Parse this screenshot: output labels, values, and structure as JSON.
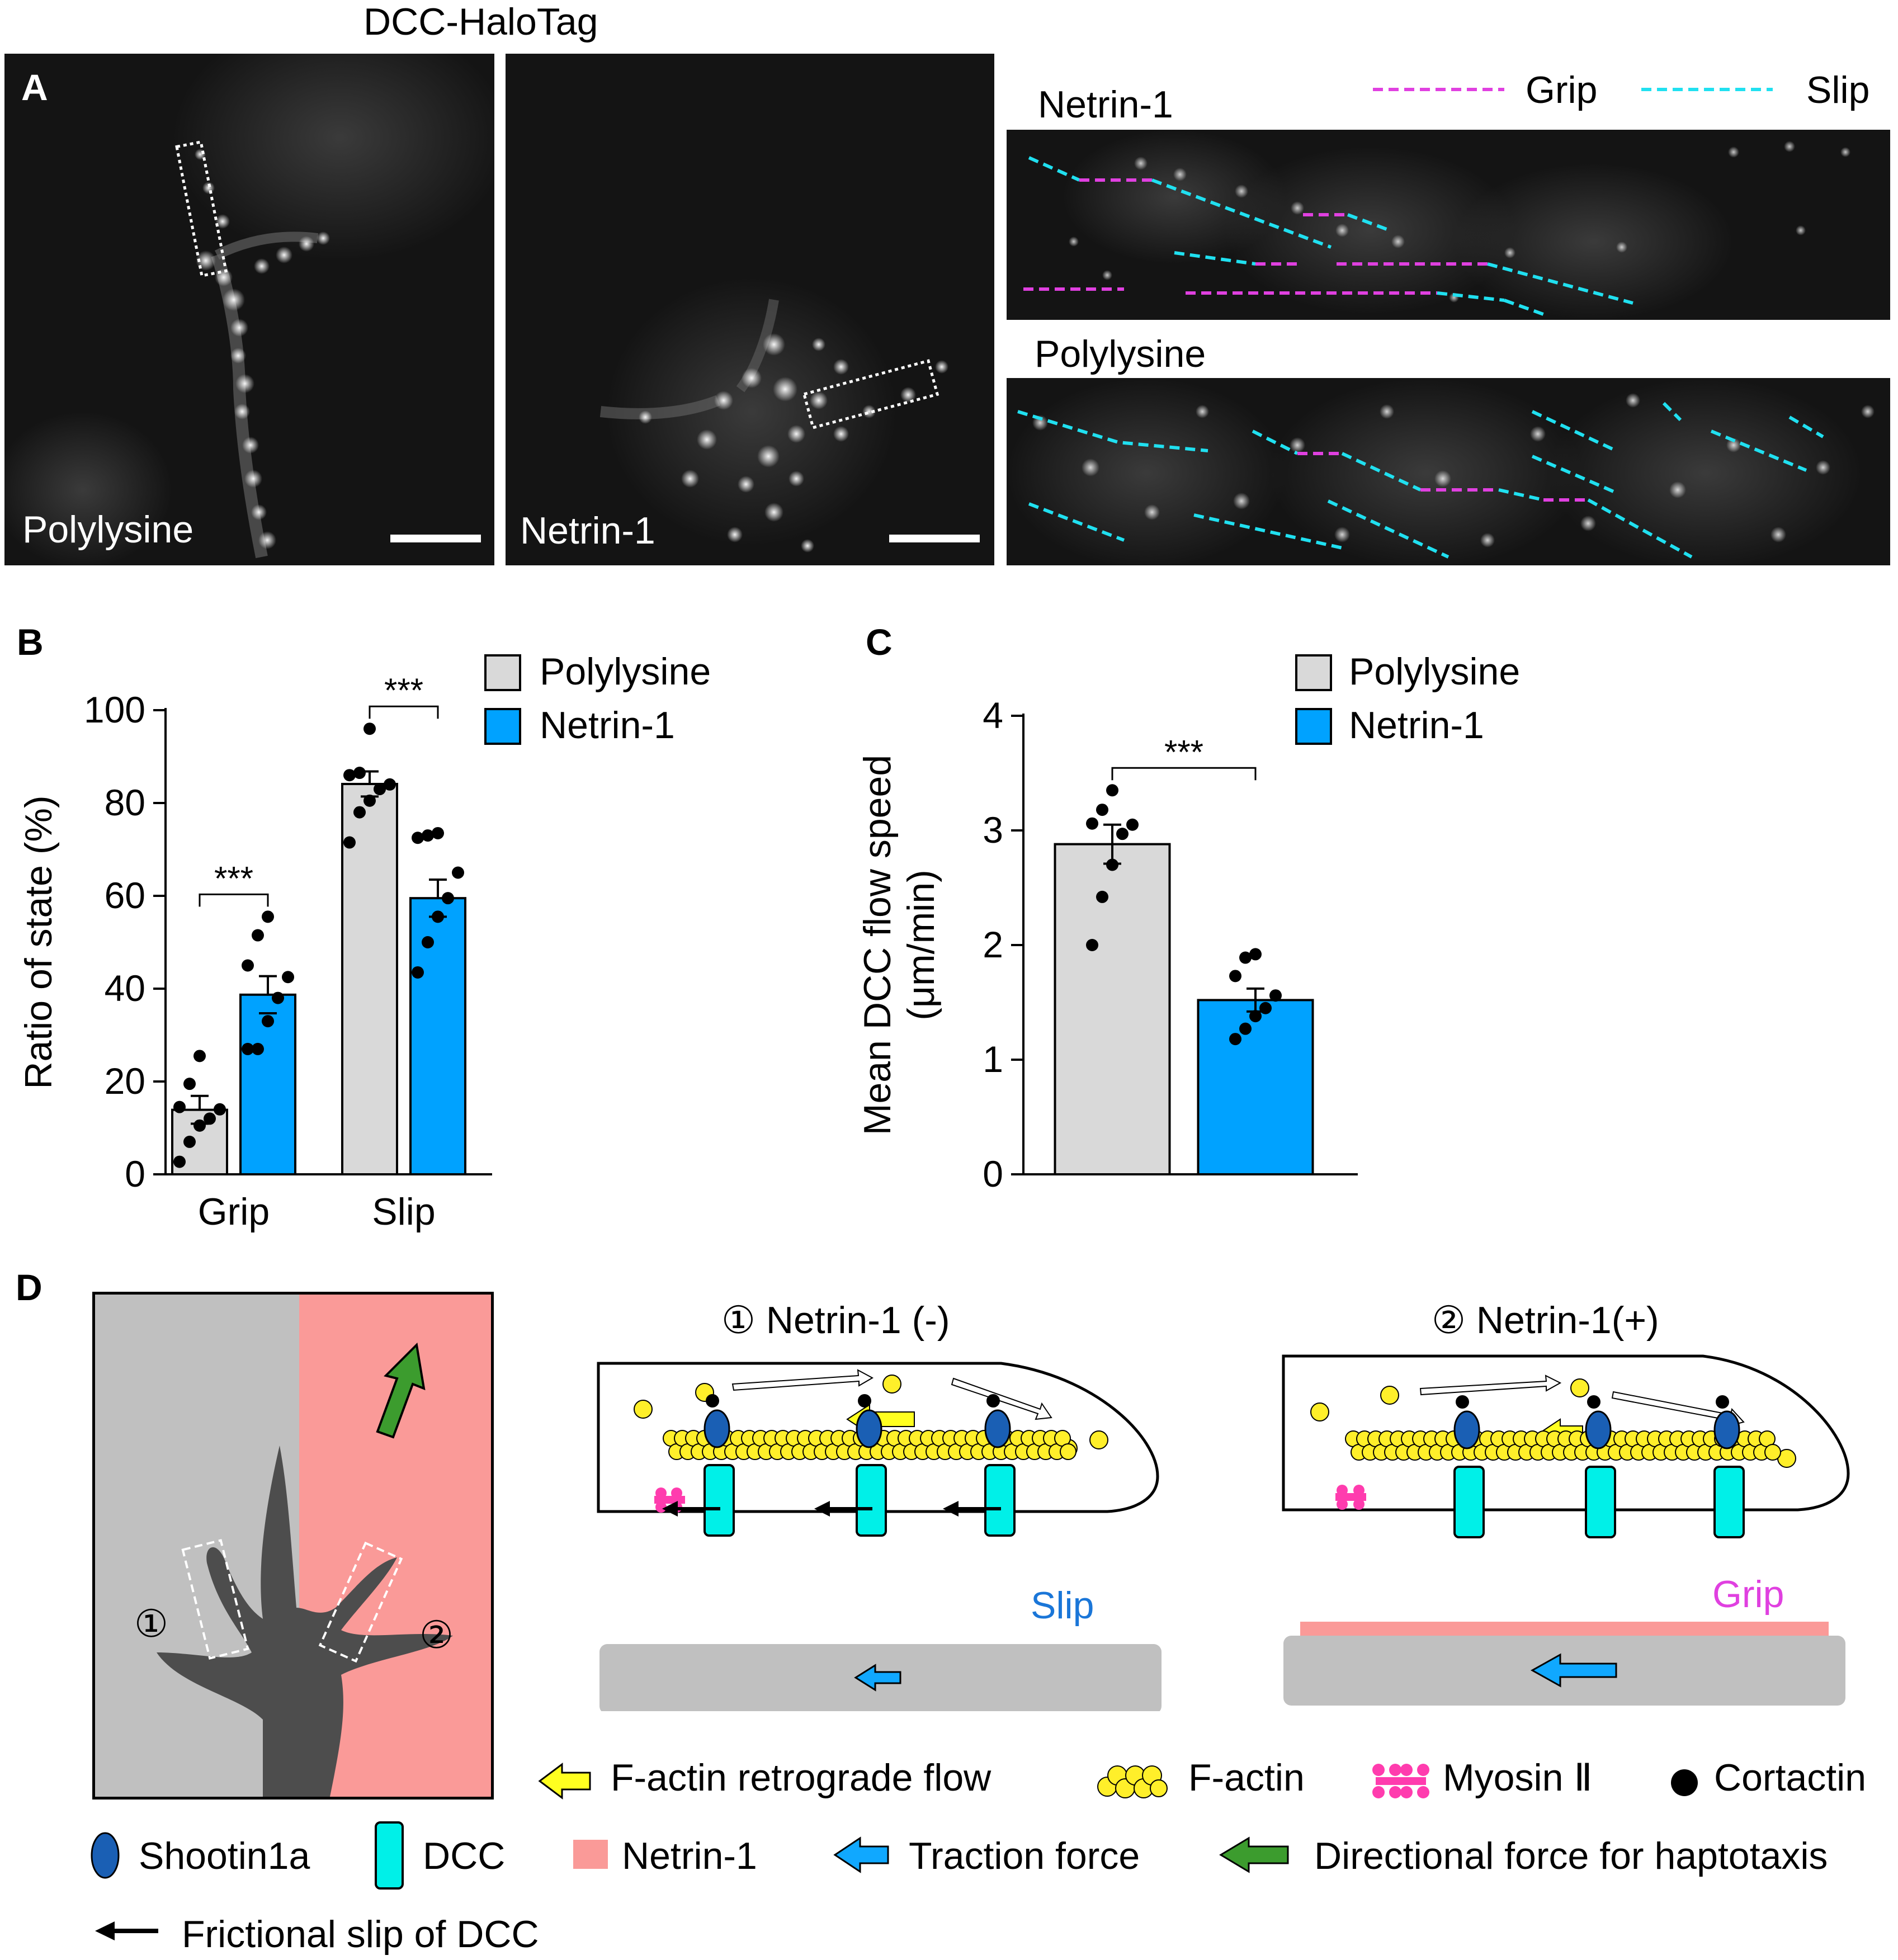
{
  "panel_a": {
    "letter": "A",
    "header": "DCC-HaloTag",
    "image1_label": "Polylysine",
    "image2_label": "Netrin-1",
    "kymo_top_label": "Netrin-1",
    "kymo_bottom_label": "Polylysine",
    "legend_grip": "Grip",
    "legend_slip": "Slip",
    "colors": {
      "grip": "#e040e0",
      "slip": "#20e0f0"
    }
  },
  "chart_data": [
    {
      "panel": "B",
      "type": "bar",
      "categories": [
        "Grip",
        "Slip"
      ],
      "series": [
        {
          "name": "Polylysine",
          "color": "#d9d9d9",
          "values": [
            13.9,
            84.1
          ],
          "sem": [
            3.0,
            2.7
          ],
          "points": [
            [
              2.7,
              7.0,
              10.5,
              12.0,
              14.0,
              14.5,
              19.5,
              25.5
            ],
            [
              71.5,
              78.0,
              80.5,
              83.0,
              84.0,
              86.0,
              86.5,
              96.0
            ]
          ]
        },
        {
          "name": "Netrin-1",
          "color": "#00a2ff",
          "values": [
            38.7,
            59.5
          ],
          "sem": [
            4.0,
            4.0
          ],
          "points": [
            [
              27.0,
              27.0,
              33.0,
              38.0,
              42.5,
              45.0,
              51.5,
              55.5
            ],
            [
              43.5,
              50.0,
              55.5,
              59.5,
              65.0,
              72.5,
              73.0,
              73.5
            ]
          ]
        }
      ],
      "significance": [
        "***",
        "***"
      ],
      "ylabel": "Ratio of state (%)",
      "ylim": [
        0,
        100
      ],
      "yticks": [
        0,
        20,
        40,
        60,
        80,
        100
      ],
      "legend": "top-right"
    },
    {
      "panel": "C",
      "type": "bar",
      "categories": [
        "Polylysine",
        "Netrin-1"
      ],
      "values": [
        2.88,
        1.52
      ],
      "sem": [
        0.17,
        0.1
      ],
      "colors": [
        "#d9d9d9",
        "#00a2ff"
      ],
      "points": [
        [
          2.0,
          2.42,
          2.7,
          2.97,
          3.05,
          3.06,
          3.18,
          3.35
        ],
        [
          1.18,
          1.27,
          1.38,
          1.45,
          1.56,
          1.73,
          1.89,
          1.92
        ]
      ],
      "significance": "***",
      "ylabel": "Mean DCC flow speed",
      "ylabel2": "(μm/min)",
      "ylim": [
        0,
        4
      ],
      "yticks": [
        0,
        1,
        2,
        3,
        4
      ],
      "legend": "top-right"
    }
  ],
  "panel_b": {
    "letter": "B"
  },
  "panel_c": {
    "letter": "C"
  },
  "panel_d": {
    "letter": "D",
    "region1": "①",
    "region2": "②",
    "diagram1_title": "①  Netrin-1 (-)",
    "diagram2_title": "②  Netrin-1(+)",
    "slip_label": "Slip",
    "grip_label": "Grip",
    "legend": {
      "retrograde": "F-actin retrograde flow",
      "factin": "F-actin",
      "myosin": "Myosin Ⅱ",
      "cortactin": "Cortactin",
      "shootin": "Shootin1a",
      "dcc": "DCC",
      "netrin": "Netrin-1",
      "traction": "Traction force",
      "directional": "Directional force for haptotaxis",
      "frictional": "Frictional slip of DCC"
    }
  }
}
